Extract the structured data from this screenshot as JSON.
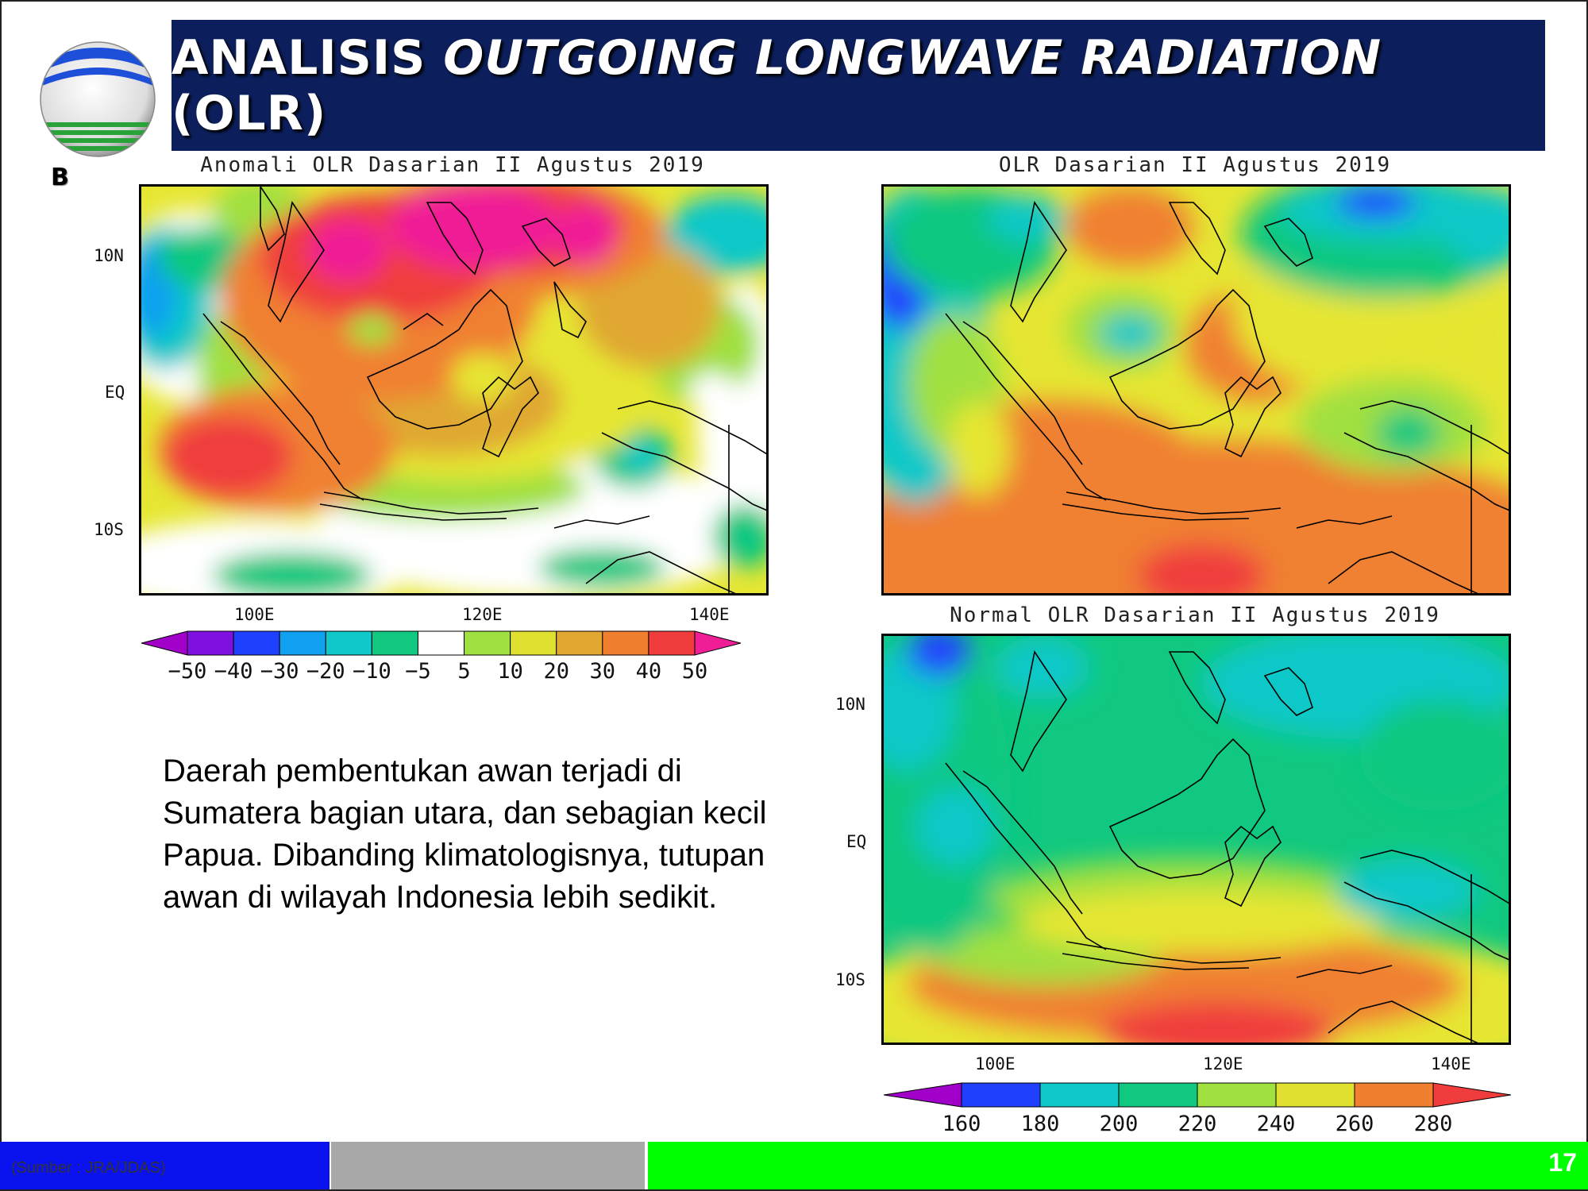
{
  "slide": {
    "title_prefix": "ANALISIS ",
    "title_italic": "OUTGOING LONGWAVE RADIATION",
    "title_suffix": " (OLR)",
    "panel_letter": "B",
    "description": "Daerah pembentukan awan terjadi di Sumatera bagian utara, dan sebagian kecil Papua. Dibanding klimatologisnya, tutupan awan di wilayah Indonesia lebih sedikit.",
    "source": "(Sumber : JRA/JDAS)",
    "page_number": "17"
  },
  "colors": {
    "title_bar": "#0c1f5c",
    "footer_blue": "#0a12f0",
    "footer_gray": "#a8a8a8",
    "footer_green": "#00ff00"
  },
  "maps": {
    "anomaly": {
      "title": "Anomali OLR Dasarian II Agustus 2019",
      "lat_labels": [
        "10N",
        "EQ",
        "10S"
      ],
      "lon_labels": [
        "100E",
        "120E",
        "140E"
      ],
      "colorbar_labels": [
        "−50",
        "−40",
        "−30",
        "−20",
        "−10",
        "−5",
        "5",
        "10",
        "20",
        "30",
        "40",
        "50"
      ],
      "colorbar_colors": [
        "#a000c8",
        "#8010e0",
        "#2040ff",
        "#10a0f0",
        "#10c8c8",
        "#10c880",
        "#ffffff",
        "#a0e040",
        "#e0e030",
        "#e0a830",
        "#f08030",
        "#f03c3c",
        "#f01e96"
      ]
    },
    "olr": {
      "title": "OLR Dasarian II Agustus 2019"
    },
    "normal": {
      "title": "Normal OLR Dasarian II Agustus 2019",
      "lat_labels": [
        "10N",
        "EQ",
        "10S"
      ],
      "lon_labels": [
        "100E",
        "120E",
        "140E"
      ],
      "colorbar_labels": [
        "160",
        "180",
        "200",
        "220",
        "240",
        "260",
        "280"
      ],
      "colorbar_colors": [
        "#a000c8",
        "#2040ff",
        "#10c8c8",
        "#10c880",
        "#a0e040",
        "#e0e030",
        "#f08030",
        "#f03c3c"
      ]
    }
  }
}
